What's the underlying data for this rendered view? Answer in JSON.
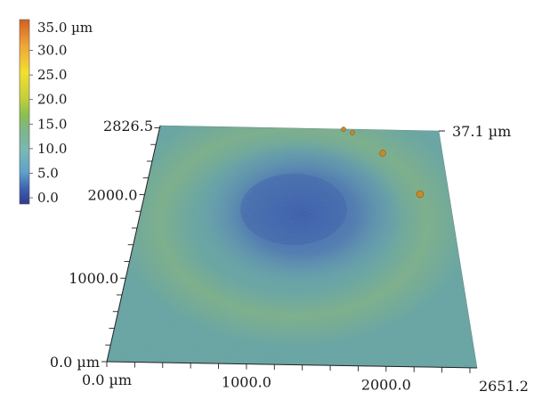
{
  "colorbar": {
    "title": "35.0 µm",
    "labels": [
      "30.0",
      "25.0",
      "20.0",
      "15.0",
      "10.0",
      "5.0",
      "0.0"
    ],
    "levels": [
      30,
      25,
      20,
      15,
      10,
      5,
      0
    ],
    "range": [
      0,
      35
    ],
    "gradient": [
      {
        "v": 0,
        "color": "#303a8e"
      },
      {
        "v": 3,
        "color": "#3d63b0"
      },
      {
        "v": 6,
        "color": "#5fa0cc"
      },
      {
        "v": 10,
        "color": "#79b8b6"
      },
      {
        "v": 14,
        "color": "#7fb58a"
      },
      {
        "v": 17,
        "color": "#8cbf4e"
      },
      {
        "v": 20,
        "color": "#c3cf3a"
      },
      {
        "v": 25,
        "color": "#f2df2f"
      },
      {
        "v": 30,
        "color": "#f0a63a"
      },
      {
        "v": 35,
        "color": "#d2601f"
      }
    ]
  },
  "axes": {
    "x_labels": [
      "0.0 µm",
      "1000.0",
      "2000.0",
      "2651.2"
    ],
    "x_values": [
      0,
      1000,
      2000,
      2651.2
    ],
    "y_labels": [
      "0.0 µm",
      "1000.0",
      "2000.0",
      "2826.5"
    ],
    "y_values": [
      0,
      1000,
      2000,
      2826.5
    ],
    "z_label": "37.1 µm",
    "x_max": 2651.2,
    "y_max": 2826.5
  },
  "surface": {
    "base_color": "#6aa7a2",
    "depression_color": "#3f63ad",
    "rim_color": "#8fbb74",
    "particle_color": "#c98a26"
  }
}
